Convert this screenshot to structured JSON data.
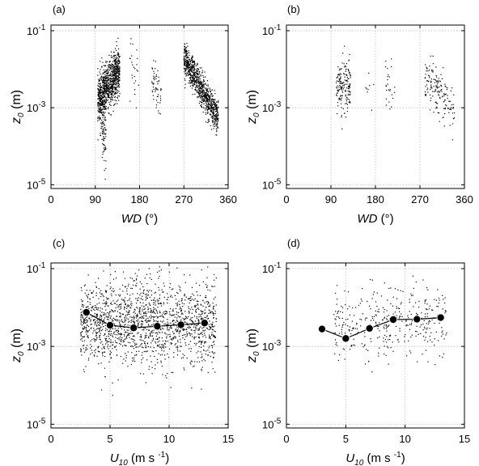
{
  "figure": {
    "panels": [
      {
        "letter": "(a)",
        "xlabel": "WD",
        "xunit": "(°)"
      },
      {
        "letter": "(b)",
        "xlabel": "WD",
        "xunit": "(°)"
      },
      {
        "letter": "(c)",
        "xlabel_main": "U",
        "xlabel_sub": "10",
        "xunit_pre": "(m s",
        "xunit_sup": "-1",
        "xunit_post": ")"
      },
      {
        "letter": "(d)",
        "xlabel_main": "U",
        "xlabel_sub": "10",
        "xunit_pre": "(m s",
        "xunit_sup": "-1",
        "xunit_post": ")"
      }
    ],
    "ylabel_main": "z",
    "ylabel_sub": "0",
    "ylabel_unit": "(m)",
    "colors": {
      "points": "#000000",
      "grid": "#bfbfbf",
      "axes": "#000000",
      "mean_marker": "#000000"
    }
  },
  "chart_data": [
    {
      "type": "scatter",
      "panel": "(a)",
      "xlim": [
        0,
        360
      ],
      "xticks": [
        0,
        90,
        180,
        270,
        360
      ],
      "ylim": [
        8e-06,
        0.14
      ],
      "yscale": "log",
      "yticks": [
        {
          "value": 1e-05,
          "base": "10",
          "exp": "-5"
        },
        {
          "value": 0.001,
          "base": "10",
          "exp": "-3"
        },
        {
          "value": 0.1,
          "base": "10",
          "exp": "-1"
        }
      ],
      "grid": true,
      "clusters": [
        {
          "x_range": [
            95,
            140
          ],
          "log10_y_center": [
            -2.8,
            -2.0
          ],
          "log10_y_spread": 0.3,
          "points": 900
        },
        {
          "x_range": [
            100,
            112
          ],
          "log10_y_center": [
            -3.2,
            -3.6
          ],
          "log10_y_spread": 0.5,
          "points": 120
        },
        {
          "x_range": [
            160,
            178
          ],
          "log10_y_center": [
            -1.9,
            -2.5
          ],
          "log10_y_spread": 0.5,
          "points": 25
        },
        {
          "x_range": [
            205,
            225
          ],
          "log10_y_center": [
            -2.2,
            -2.9
          ],
          "log10_y_spread": 0.3,
          "points": 60
        },
        {
          "x_range": [
            270,
            340
          ],
          "log10_y_center": [
            -1.7,
            -3.3
          ],
          "log10_y_spread": 0.22,
          "points": 900
        }
      ]
    },
    {
      "type": "scatter",
      "panel": "(b)",
      "xlim": [
        0,
        360
      ],
      "xticks": [
        0,
        90,
        180,
        270,
        360
      ],
      "ylim": [
        8e-06,
        0.14
      ],
      "yscale": "log",
      "yticks": [
        {
          "value": 1e-05,
          "base": "10",
          "exp": "-5"
        },
        {
          "value": 0.001,
          "base": "10",
          "exp": "-3"
        },
        {
          "value": 0.1,
          "base": "10",
          "exp": "-1"
        }
      ],
      "grid": true,
      "clusters": [
        {
          "x_range": [
            100,
            130
          ],
          "log10_y_center": [
            -2.5,
            -2.5
          ],
          "log10_y_spread": 0.35,
          "points": 170
        },
        {
          "x_range": [
            160,
            178
          ],
          "log10_y_center": [
            -2.4,
            -2.4
          ],
          "log10_y_spread": 0.2,
          "points": 8
        },
        {
          "x_range": [
            200,
            220
          ],
          "log10_y_center": [
            -2.3,
            -2.6
          ],
          "log10_y_spread": 0.3,
          "points": 25
        },
        {
          "x_range": [
            280,
            340
          ],
          "log10_y_center": [
            -2.1,
            -3.1
          ],
          "log10_y_spread": 0.3,
          "points": 160
        }
      ]
    },
    {
      "type": "scatter",
      "panel": "(c)",
      "xlim": [
        0,
        15
      ],
      "xticks": [
        0,
        5,
        10,
        15
      ],
      "ylim": [
        8e-06,
        0.14
      ],
      "yscale": "log",
      "yticks": [
        {
          "value": 1e-05,
          "base": "10",
          "exp": "-5"
        },
        {
          "value": 0.001,
          "base": "10",
          "exp": "-3"
        },
        {
          "value": 0.1,
          "base": "10",
          "exp": "-1"
        }
      ],
      "grid": true,
      "clusters": [
        {
          "x_range": [
            2.5,
            14
          ],
          "log10_y_center": [
            -2.4,
            -2.4
          ],
          "log10_y_spread": 0.55,
          "points": 1700
        }
      ],
      "series": [
        {
          "type": "line-marker",
          "x": [
            3,
            5,
            7,
            9,
            11,
            13
          ],
          "y": [
            0.0075,
            0.0035,
            0.003,
            0.0033,
            0.0036,
            0.004
          ]
        }
      ]
    },
    {
      "type": "scatter",
      "panel": "(d)",
      "xlim": [
        0,
        15
      ],
      "xticks": [
        0,
        5,
        10,
        15
      ],
      "ylim": [
        8e-06,
        0.14
      ],
      "yscale": "log",
      "yticks": [
        {
          "value": 1e-05,
          "base": "10",
          "exp": "-5"
        },
        {
          "value": 0.001,
          "base": "10",
          "exp": "-3"
        },
        {
          "value": 0.1,
          "base": "10",
          "exp": "-1"
        }
      ],
      "grid": true,
      "clusters": [
        {
          "x_range": [
            4,
            13.5
          ],
          "log10_y_center": [
            -2.5,
            -2.3
          ],
          "log10_y_spread": 0.45,
          "points": 380
        }
      ],
      "series": [
        {
          "type": "line-marker",
          "x": [
            3,
            5,
            7,
            9,
            11,
            13
          ],
          "y": [
            0.0028,
            0.0016,
            0.0029,
            0.0049,
            0.005,
            0.0055
          ]
        }
      ]
    }
  ]
}
